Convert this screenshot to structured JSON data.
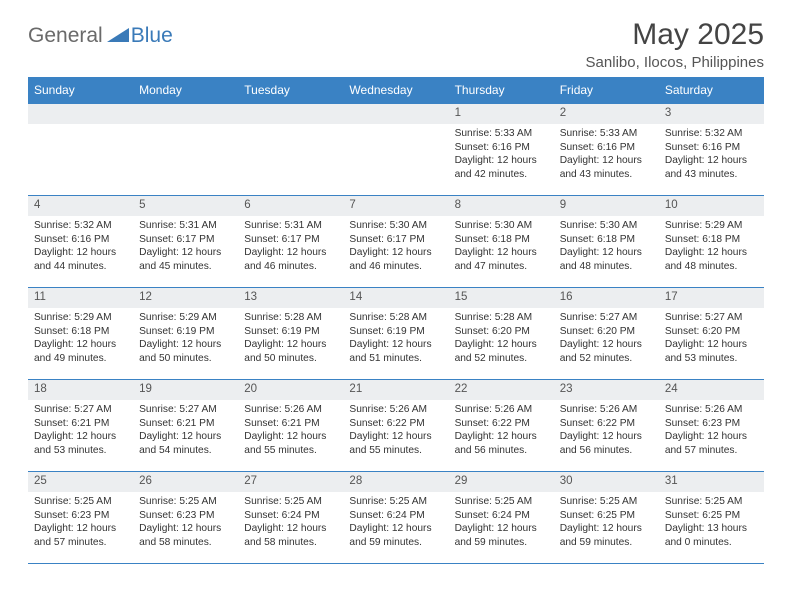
{
  "brand": {
    "general": "General",
    "blue": "Blue"
  },
  "title": "May 2025",
  "location": "Sanlibo, Ilocos, Philippines",
  "colors": {
    "header_bg": "#3a82c4",
    "header_text": "#ffffff",
    "border": "#3a82c4",
    "daynum_bg": "#eceef0",
    "body_text": "#333333",
    "brand_gray": "#6a6a6a",
    "brand_blue": "#3a7ab8"
  },
  "weekdays": [
    "Sunday",
    "Monday",
    "Tuesday",
    "Wednesday",
    "Thursday",
    "Friday",
    "Saturday"
  ],
  "layout": {
    "first_weekday_index": 4,
    "days_in_month": 31
  },
  "days": {
    "1": {
      "sunrise": "5:33 AM",
      "sunset": "6:16 PM",
      "daylight": "12 hours and 42 minutes."
    },
    "2": {
      "sunrise": "5:33 AM",
      "sunset": "6:16 PM",
      "daylight": "12 hours and 43 minutes."
    },
    "3": {
      "sunrise": "5:32 AM",
      "sunset": "6:16 PM",
      "daylight": "12 hours and 43 minutes."
    },
    "4": {
      "sunrise": "5:32 AM",
      "sunset": "6:16 PM",
      "daylight": "12 hours and 44 minutes."
    },
    "5": {
      "sunrise": "5:31 AM",
      "sunset": "6:17 PM",
      "daylight": "12 hours and 45 minutes."
    },
    "6": {
      "sunrise": "5:31 AM",
      "sunset": "6:17 PM",
      "daylight": "12 hours and 46 minutes."
    },
    "7": {
      "sunrise": "5:30 AM",
      "sunset": "6:17 PM",
      "daylight": "12 hours and 46 minutes."
    },
    "8": {
      "sunrise": "5:30 AM",
      "sunset": "6:18 PM",
      "daylight": "12 hours and 47 minutes."
    },
    "9": {
      "sunrise": "5:30 AM",
      "sunset": "6:18 PM",
      "daylight": "12 hours and 48 minutes."
    },
    "10": {
      "sunrise": "5:29 AM",
      "sunset": "6:18 PM",
      "daylight": "12 hours and 48 minutes."
    },
    "11": {
      "sunrise": "5:29 AM",
      "sunset": "6:18 PM",
      "daylight": "12 hours and 49 minutes."
    },
    "12": {
      "sunrise": "5:29 AM",
      "sunset": "6:19 PM",
      "daylight": "12 hours and 50 minutes."
    },
    "13": {
      "sunrise": "5:28 AM",
      "sunset": "6:19 PM",
      "daylight": "12 hours and 50 minutes."
    },
    "14": {
      "sunrise": "5:28 AM",
      "sunset": "6:19 PM",
      "daylight": "12 hours and 51 minutes."
    },
    "15": {
      "sunrise": "5:28 AM",
      "sunset": "6:20 PM",
      "daylight": "12 hours and 52 minutes."
    },
    "16": {
      "sunrise": "5:27 AM",
      "sunset": "6:20 PM",
      "daylight": "12 hours and 52 minutes."
    },
    "17": {
      "sunrise": "5:27 AM",
      "sunset": "6:20 PM",
      "daylight": "12 hours and 53 minutes."
    },
    "18": {
      "sunrise": "5:27 AM",
      "sunset": "6:21 PM",
      "daylight": "12 hours and 53 minutes."
    },
    "19": {
      "sunrise": "5:27 AM",
      "sunset": "6:21 PM",
      "daylight": "12 hours and 54 minutes."
    },
    "20": {
      "sunrise": "5:26 AM",
      "sunset": "6:21 PM",
      "daylight": "12 hours and 55 minutes."
    },
    "21": {
      "sunrise": "5:26 AM",
      "sunset": "6:22 PM",
      "daylight": "12 hours and 55 minutes."
    },
    "22": {
      "sunrise": "5:26 AM",
      "sunset": "6:22 PM",
      "daylight": "12 hours and 56 minutes."
    },
    "23": {
      "sunrise": "5:26 AM",
      "sunset": "6:22 PM",
      "daylight": "12 hours and 56 minutes."
    },
    "24": {
      "sunrise": "5:26 AM",
      "sunset": "6:23 PM",
      "daylight": "12 hours and 57 minutes."
    },
    "25": {
      "sunrise": "5:25 AM",
      "sunset": "6:23 PM",
      "daylight": "12 hours and 57 minutes."
    },
    "26": {
      "sunrise": "5:25 AM",
      "sunset": "6:23 PM",
      "daylight": "12 hours and 58 minutes."
    },
    "27": {
      "sunrise": "5:25 AM",
      "sunset": "6:24 PM",
      "daylight": "12 hours and 58 minutes."
    },
    "28": {
      "sunrise": "5:25 AM",
      "sunset": "6:24 PM",
      "daylight": "12 hours and 59 minutes."
    },
    "29": {
      "sunrise": "5:25 AM",
      "sunset": "6:24 PM",
      "daylight": "12 hours and 59 minutes."
    },
    "30": {
      "sunrise": "5:25 AM",
      "sunset": "6:25 PM",
      "daylight": "12 hours and 59 minutes."
    },
    "31": {
      "sunrise": "5:25 AM",
      "sunset": "6:25 PM",
      "daylight": "13 hours and 0 minutes."
    }
  },
  "labels": {
    "sunrise": "Sunrise: ",
    "sunset": "Sunset: ",
    "daylight": "Daylight: "
  }
}
